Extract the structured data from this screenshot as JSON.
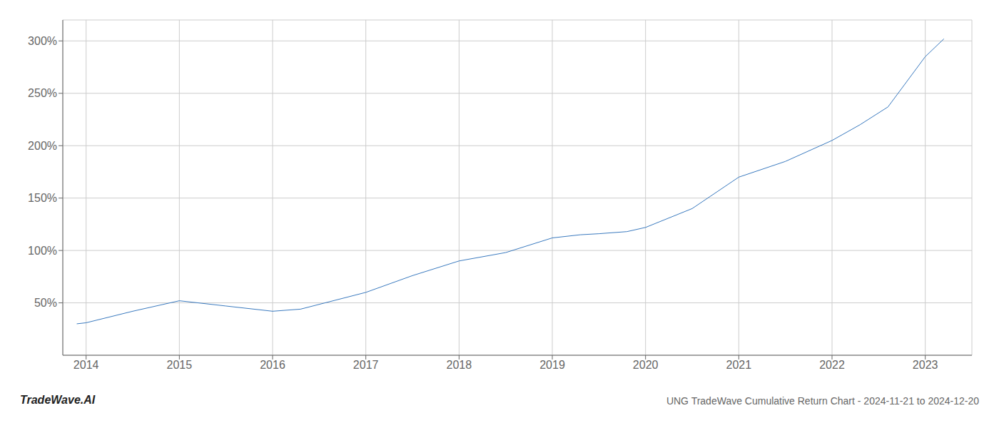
{
  "chart_data": {
    "type": "line",
    "title": "UNG TradeWave Cumulative Return Chart - 2024-11-21 to 2024-12-20",
    "annotations": [
      "TradeWave.AI"
    ],
    "x": [
      2013.9,
      2014.0,
      2014.5,
      2015.0,
      2015.5,
      2016.0,
      2016.3,
      2017.0,
      2017.5,
      2018.0,
      2018.5,
      2019.0,
      2019.3,
      2019.5,
      2019.8,
      2020.0,
      2020.5,
      2021.0,
      2021.5,
      2022.0,
      2022.3,
      2022.6,
      2023.0,
      2023.2
    ],
    "values": [
      30,
      31,
      42,
      52,
      47,
      42,
      44,
      60,
      76,
      90,
      98,
      112,
      115,
      116,
      118,
      122,
      140,
      170,
      185,
      205,
      220,
      237,
      285,
      302
    ],
    "color": "#3a7abf",
    "xlim": [
      2013.75,
      2023.5
    ],
    "ylim": [
      0,
      320
    ],
    "xticks": [
      2014,
      2015,
      2016,
      2017,
      2018,
      2019,
      2020,
      2021,
      2022,
      2023
    ],
    "yticks": [
      {
        "value": 50,
        "label": "50%"
      },
      {
        "value": 100,
        "label": "100%"
      },
      {
        "value": 150,
        "label": "150%"
      },
      {
        "value": 200,
        "label": "200%"
      },
      {
        "value": 250,
        "label": "250%"
      },
      {
        "value": 300,
        "label": "300%"
      }
    ],
    "grid": true
  }
}
